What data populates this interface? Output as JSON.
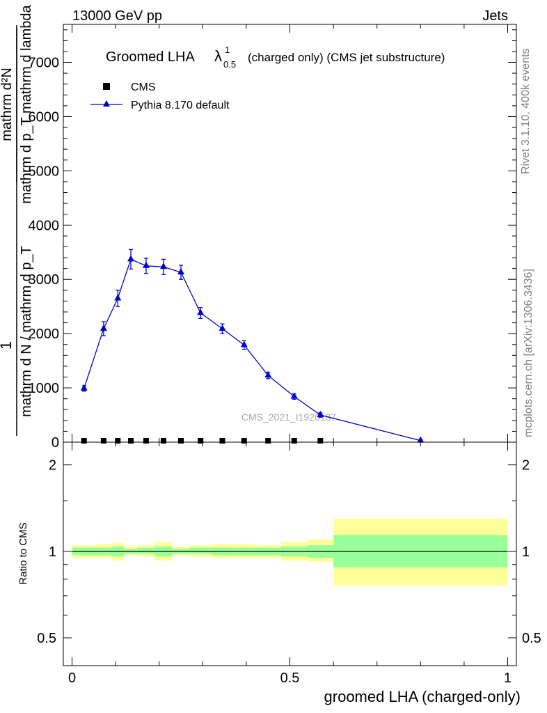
{
  "header": {
    "left": "13000 GeV pp",
    "right": "Jets"
  },
  "title": {
    "main": "Groomed LHA",
    "lambda": "λ",
    "sup": "1",
    "sub": "0.5",
    "suffix": "(charged only) (CMS jet substructure)"
  },
  "legend": {
    "data_label": "CMS",
    "mc_label": "Pythia 8.170 default"
  },
  "side_labels": {
    "rivet": "Rivet 3.1.10,  400k events",
    "mcplots": "mcplots.cern.ch [arXiv:1306.3436]"
  },
  "watermark": "CMS_2021_I1920187",
  "colors": {
    "mc": "#0000cc",
    "data": "#000000",
    "band_inner": "#99ff99",
    "band_outer": "#ffff99"
  },
  "chart_data": {
    "type": "line",
    "title": "Groomed LHA λ^1_0.5 (charged only) (CMS jet substructure)",
    "xlabel": "groomed LHA (charged-only)",
    "ylabel_top": {
      "numerator": "1",
      "denominator": "mathrm d N / mathrm d p_T",
      "d_num": "mathrm d²N",
      "d_den": "mathrm d p_T mathrm d lambda"
    },
    "ylabel_ratio": "Ratio to CMS",
    "xlim": [
      -0.02,
      1.02
    ],
    "ylim_main": [
      0,
      7700
    ],
    "ylim_ratio_log": [
      0.4,
      2.4
    ],
    "main_y_ticks": [
      {
        "v": 0,
        "label": "0"
      },
      {
        "v": 1000,
        "label": "1000"
      },
      {
        "v": 2000,
        "label": "2000"
      },
      {
        "v": 3000,
        "label": "3000"
      },
      {
        "v": 4000,
        "label": "4000"
      },
      {
        "v": 5000,
        "label": "5000"
      },
      {
        "v": 6000,
        "label": "6000"
      },
      {
        "v": 7000,
        "label": "7000"
      }
    ],
    "ratio_y_ticks": [
      {
        "v": 0.5,
        "label": "0.5"
      },
      {
        "v": 1,
        "label": "1"
      },
      {
        "v": 2,
        "label": "2"
      }
    ],
    "x_ticks": [
      {
        "v": 0,
        "label": "0"
      },
      {
        "v": 0.5,
        "label": "0.5"
      },
      {
        "v": 1,
        "label": "1"
      }
    ],
    "bin_edges": [
      0,
      0.055,
      0.09,
      0.12,
      0.15,
      0.19,
      0.23,
      0.27,
      0.32,
      0.37,
      0.42,
      0.48,
      0.54,
      0.6,
      1.0
    ],
    "series": [
      {
        "name": "Pythia 8.170 default",
        "x": [
          0.0275,
          0.0725,
          0.105,
          0.135,
          0.17,
          0.21,
          0.25,
          0.295,
          0.345,
          0.395,
          0.45,
          0.51,
          0.57,
          0.8
        ],
        "y": [
          990,
          2090,
          2650,
          3370,
          3250,
          3230,
          3130,
          2380,
          2090,
          1790,
          1230,
          840,
          500,
          30
        ],
        "yerr": [
          50,
          130,
          150,
          180,
          140,
          140,
          130,
          100,
          90,
          80,
          60,
          50,
          40,
          15
        ]
      },
      {
        "name": "CMS",
        "x": [
          0.0275,
          0.0725,
          0.105,
          0.135,
          0.17,
          0.21,
          0.25,
          0.295,
          0.345,
          0.395,
          0.45,
          0.51,
          0.57,
          0.8
        ],
        "y": [
          0,
          0,
          0,
          0,
          0,
          0,
          0,
          0,
          0,
          0,
          0,
          0,
          0,
          0
        ]
      }
    ],
    "ratio_bands": {
      "inner_lo": [
        0.97,
        0.97,
        0.96,
        0.98,
        0.98,
        0.96,
        0.98,
        0.98,
        0.97,
        0.97,
        0.97,
        0.96,
        0.95,
        0.88
      ],
      "inner_hi": [
        1.03,
        1.03,
        1.04,
        1.02,
        1.03,
        1.04,
        1.02,
        1.03,
        1.03,
        1.03,
        1.03,
        1.04,
        1.05,
        1.14
      ],
      "outer_lo": [
        0.95,
        0.95,
        0.93,
        0.97,
        0.96,
        0.93,
        0.97,
        0.96,
        0.95,
        0.95,
        0.95,
        0.93,
        0.92,
        0.76
      ],
      "outer_hi": [
        1.05,
        1.06,
        1.07,
        1.04,
        1.05,
        1.08,
        1.04,
        1.05,
        1.06,
        1.06,
        1.05,
        1.08,
        1.1,
        1.3
      ]
    }
  }
}
